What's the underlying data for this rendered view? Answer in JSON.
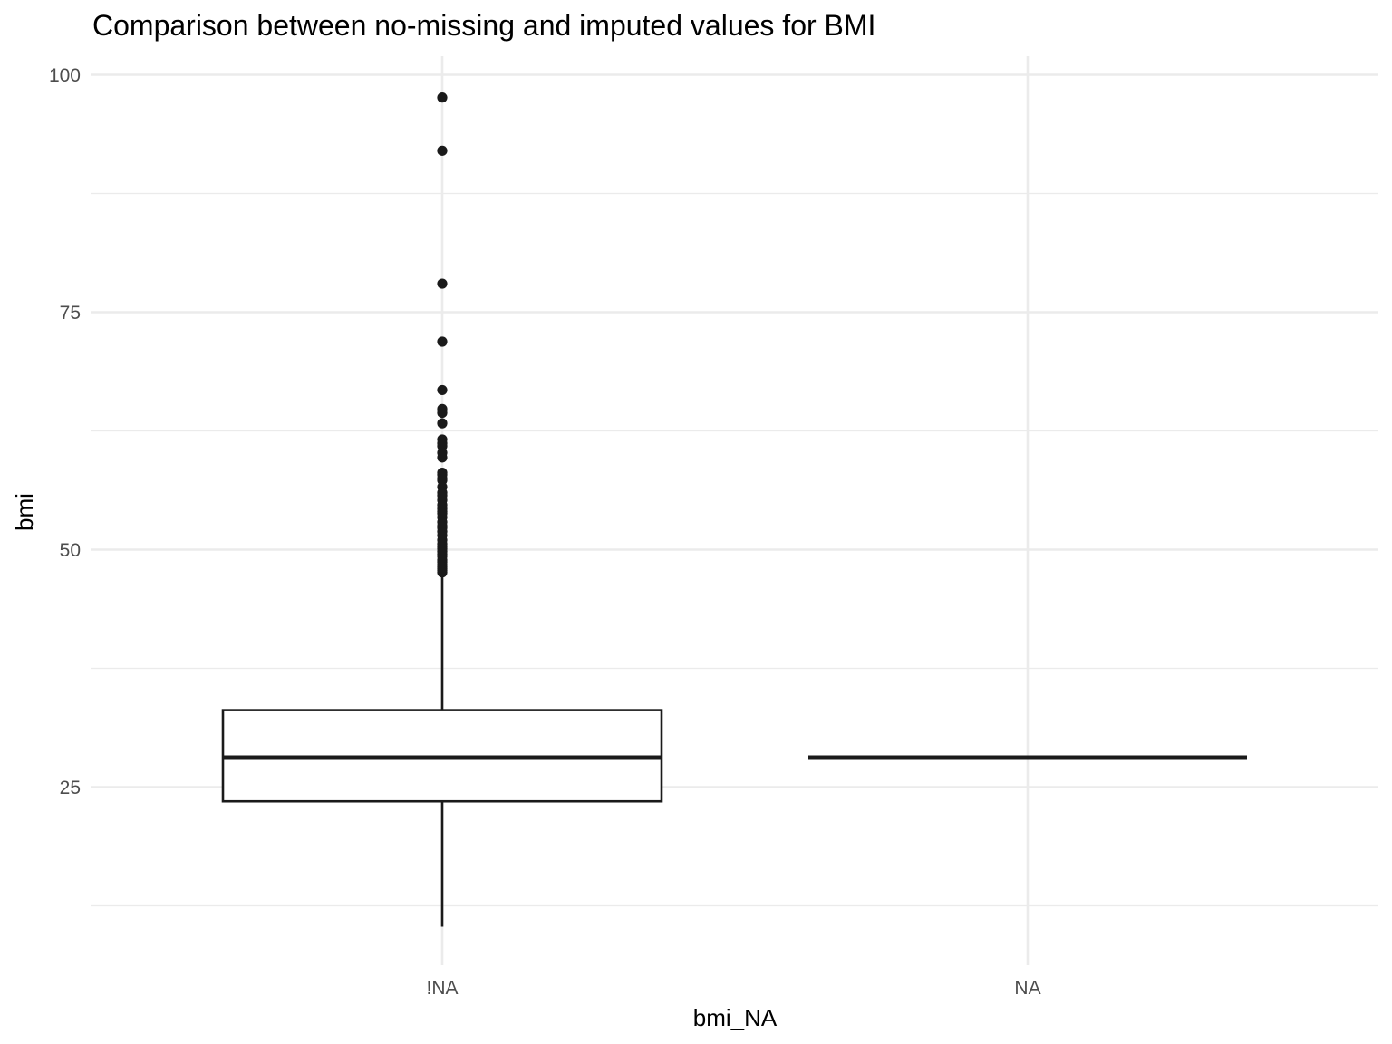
{
  "chart_data": {
    "type": "box",
    "title": "Comparison between no-missing and imputed values for BMI",
    "xlabel": "bmi_NA",
    "ylabel": "bmi",
    "categories": [
      "!NA",
      "NA"
    ],
    "yticks": [
      25,
      50,
      75,
      100
    ],
    "ylim": [
      8.0,
      102.0
    ],
    "grid": true,
    "legend": "none",
    "colors": {
      "box_line": "#1a1a1a",
      "outlier": "#1a1a1a",
      "grid": "#ebebeb",
      "box_fill": "#ffffff"
    },
    "boxes": [
      {
        "category": "!NA",
        "min": 10.3,
        "q1": 23.5,
        "median": 28.1,
        "q3": 33.1,
        "max": 47.5,
        "outliers": [
          97.6,
          92.0,
          78.0,
          71.9,
          66.8,
          64.8,
          64.4,
          63.3,
          61.6,
          61.2,
          60.9,
          60.2,
          59.7,
          58.1,
          57.9,
          57.5,
          57.3,
          56.6,
          56.0,
          55.7,
          55.2,
          54.7,
          54.3,
          54.0,
          53.8,
          53.4,
          52.9,
          52.5,
          52.3,
          51.9,
          51.5,
          51.0,
          50.6,
          50.3,
          50.1,
          49.8,
          49.5,
          49.3,
          48.9,
          48.7,
          48.4,
          48.2,
          48.0,
          47.8,
          47.6
        ]
      },
      {
        "category": "NA",
        "min": 28.1,
        "q1": 28.1,
        "median": 28.1,
        "q3": 28.1,
        "max": 28.1,
        "outliers": []
      }
    ]
  }
}
